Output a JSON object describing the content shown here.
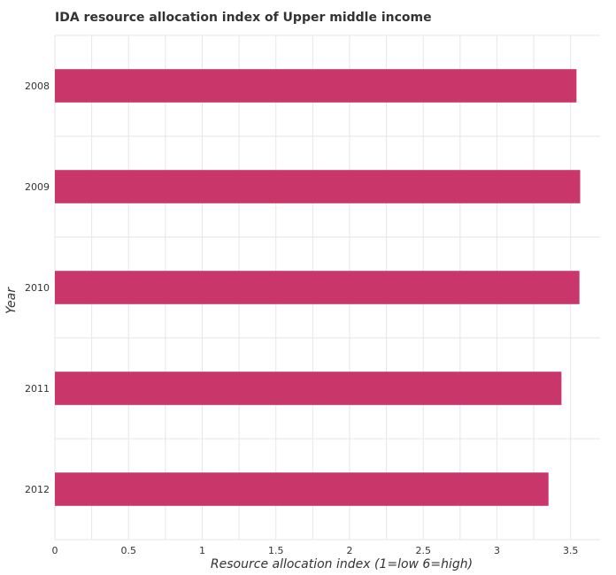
{
  "chart_data": {
    "type": "bar",
    "orientation": "horizontal",
    "title": "IDA resource allocation index of Upper middle income",
    "xlabel": "Resource allocation index (1=low 6=high)",
    "ylabel": "Year",
    "categories": [
      "2008",
      "2009",
      "2010",
      "2011",
      "2012"
    ],
    "values": [
      3.54,
      3.565,
      3.56,
      3.438,
      3.35
    ],
    "xlim": [
      0,
      3.7
    ],
    "xticks": [
      "0",
      "0.5",
      "1",
      "1.5",
      "2",
      "2.5",
      "3",
      "3.5"
    ],
    "grid": true,
    "bar_color": "#c8366a"
  }
}
